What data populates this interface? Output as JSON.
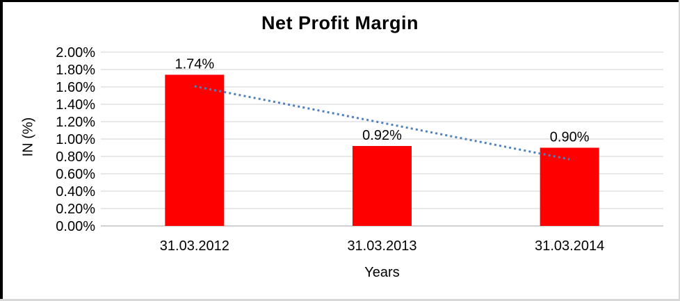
{
  "chart_data": {
    "type": "bar",
    "title": "Net Profit Margin",
    "xlabel": "Years",
    "ylabel": "IN (%)",
    "categories": [
      "31.03.2012",
      "31.03.2013",
      "31.03.2014"
    ],
    "values": [
      1.74,
      0.92,
      0.9
    ],
    "value_labels": [
      "1.74%",
      "0.92%",
      "0.90%"
    ],
    "ylim": [
      0,
      2.0
    ],
    "yticks": [
      {
        "value": 0.0,
        "label": "0.00%"
      },
      {
        "value": 0.2,
        "label": "0.20%"
      },
      {
        "value": 0.4,
        "label": "0.40%"
      },
      {
        "value": 0.6,
        "label": "0.60%"
      },
      {
        "value": 0.8,
        "label": "0.80%"
      },
      {
        "value": 1.0,
        "label": "1.00%"
      },
      {
        "value": 1.2,
        "label": "1.20%"
      },
      {
        "value": 1.4,
        "label": "1.40%"
      },
      {
        "value": 1.6,
        "label": "1.60%"
      },
      {
        "value": 1.8,
        "label": "1.80%"
      },
      {
        "value": 2.0,
        "label": "2.00%"
      }
    ],
    "grid": true,
    "legend": "none",
    "colors": {
      "bar": "#FF0000",
      "trendline": "#4F81BD",
      "gridline": "#D9D9D9",
      "axis_line": "#C0C0C0",
      "text": "#000000"
    },
    "trendline": {
      "style": "dotted",
      "fit": "linear",
      "start_value": 1.607,
      "end_value": 0.767
    }
  }
}
